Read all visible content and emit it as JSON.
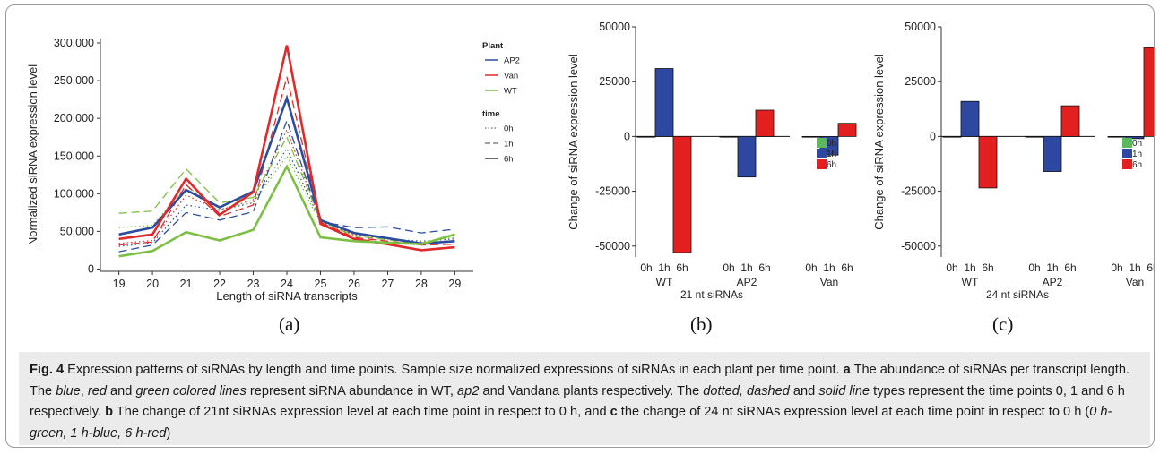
{
  "figure": {
    "panel_labels": [
      "(a)",
      "(b)",
      "(c)"
    ],
    "caption": {
      "fig_label": "Fig. 4",
      "segments": [
        {
          "t": " Expression patterns of siRNAs by length and time points. Sample size normalized expressions of siRNAs in each plant per time point. "
        },
        {
          "t": "a",
          "b": true
        },
        {
          "t": " The abundance of siRNAs per transcript length. The "
        },
        {
          "t": "blue",
          "i": true
        },
        {
          "t": ", "
        },
        {
          "t": "red",
          "i": true
        },
        {
          "t": " and "
        },
        {
          "t": "green colored lines",
          "i": true
        },
        {
          "t": " represent siRNA abundance in WT, "
        },
        {
          "t": "ap2",
          "i": true
        },
        {
          "t": " and Vandana plants respectively. The "
        },
        {
          "t": "dotted, dashed",
          "i": true
        },
        {
          "t": " and "
        },
        {
          "t": "solid line",
          "i": true
        },
        {
          "t": " types represent the time points 0, 1 and 6 h respectively. "
        },
        {
          "t": "b",
          "b": true
        },
        {
          "t": " The change of 21nt siRNAs expression level at each time point in respect to 0 h, and "
        },
        {
          "t": "c",
          "b": true
        },
        {
          "t": " the change of 24 nt siRNAs expression level at each time point in respect to 0 h ("
        },
        {
          "t": "0 h-green, 1 h-blue, 6 h-red",
          "i": true
        },
        {
          "t": ")"
        }
      ]
    }
  },
  "colors": {
    "AP2": "#2b4da0",
    "Van": "#e02a2a",
    "WT": "#7cc043",
    "0h": "#5cb85c",
    "1h": "#2e47a0",
    "6h": "#e41f1f",
    "frame": "#9a9a9a",
    "caption_bg": "#ebebeb"
  },
  "chart_data": [
    {
      "type": "line",
      "ylabel": "Normalized siRNA expression level",
      "xlabel": "Length of siRNA transcripts",
      "x": [
        19,
        20,
        21,
        22,
        23,
        24,
        25,
        26,
        27,
        28,
        29
      ],
      "ylim": [
        0,
        300000
      ],
      "yticks": [
        0,
        50000,
        100000,
        150000,
        200000,
        250000,
        300000
      ],
      "ytick_labels": [
        "0",
        "50,000",
        "100,000",
        "150,000",
        "200,000",
        "250,000",
        "300,000"
      ],
      "legend": {
        "plant_title": "Plant",
        "plant_items": [
          "AP2",
          "Van",
          "WT"
        ],
        "time_title": "time",
        "time_items": [
          "0h",
          "1h",
          "6h"
        ]
      },
      "series": [
        {
          "plant": "AP2",
          "time": "0h",
          "values": [
            30000,
            35000,
            85000,
            78000,
            88000,
            160000,
            63000,
            46000,
            40000,
            37000,
            40000
          ]
        },
        {
          "plant": "AP2",
          "time": "1h",
          "values": [
            23000,
            32000,
            75000,
            65000,
            76000,
            197000,
            63000,
            55000,
            56000,
            48000,
            53000
          ]
        },
        {
          "plant": "AP2",
          "time": "6h",
          "values": [
            46000,
            55000,
            105000,
            82000,
            103000,
            227000,
            65000,
            48000,
            41000,
            34000,
            37000
          ]
        },
        {
          "plant": "Van",
          "time": "0h",
          "values": [
            34000,
            38000,
            98000,
            78000,
            92000,
            185000,
            63000,
            46000,
            40000,
            35000,
            37000
          ]
        },
        {
          "plant": "Van",
          "time": "1h",
          "values": [
            32000,
            36000,
            112000,
            70000,
            85000,
            255000,
            62000,
            42000,
            37000,
            32000,
            33000
          ]
        },
        {
          "plant": "Van",
          "time": "6h",
          "values": [
            40000,
            46000,
            120000,
            72000,
            102000,
            297000,
            60000,
            40000,
            33000,
            25000,
            29000
          ]
        },
        {
          "plant": "WT",
          "time": "0h",
          "values": [
            55000,
            58000,
            110000,
            80000,
            88000,
            150000,
            60000,
            45000,
            40000,
            36000,
            42000
          ]
        },
        {
          "plant": "WT",
          "time": "1h",
          "values": [
            74000,
            77000,
            133000,
            88000,
            95000,
            175000,
            64000,
            44000,
            39000,
            33000,
            46000
          ]
        },
        {
          "plant": "WT",
          "time": "6h",
          "values": [
            17000,
            24000,
            49000,
            38000,
            52000,
            136000,
            42000,
            37000,
            35000,
            33000,
            46000
          ]
        }
      ]
    },
    {
      "type": "bar",
      "ylabel": "Change of siRNA expression level",
      "xlabel": "21 nt siRNAs",
      "groups": [
        "WT",
        "AP2",
        "Van"
      ],
      "time_points": [
        "0h",
        "1h",
        "6h"
      ],
      "ylim": [
        -50000,
        50000
      ],
      "yticks": [
        -50000,
        -25000,
        0,
        25000,
        50000
      ],
      "ytick_labels": [
        "-50000",
        "-25000",
        "0",
        "25000",
        "50000"
      ],
      "legend_items": [
        "0h",
        "1h",
        "6h"
      ],
      "values": [
        [
          0,
          31000,
          -53000
        ],
        [
          0,
          -18500,
          12000
        ],
        [
          0,
          -8500,
          6000
        ]
      ]
    },
    {
      "type": "bar",
      "ylabel": "Change of siRNA expression level",
      "xlabel": "24 nt siRNAs",
      "groups": [
        "WT",
        "AP2",
        "Van"
      ],
      "time_points": [
        "0h",
        "1h",
        "6h"
      ],
      "ylim": [
        -50000,
        50000
      ],
      "yticks": [
        -50000,
        -25000,
        0,
        25000,
        50000
      ],
      "ytick_labels": [
        "-50000",
        "-25000",
        "0",
        "25000",
        "50000"
      ],
      "legend_items": [
        "0h",
        "1h",
        "6h"
      ],
      "values": [
        [
          0,
          16000,
          -23500
        ],
        [
          0,
          -16000,
          14000
        ],
        [
          0,
          -1000,
          40500
        ]
      ]
    }
  ]
}
